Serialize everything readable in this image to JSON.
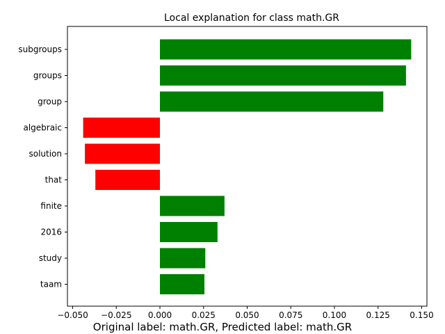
{
  "chart_data": {
    "type": "bar",
    "orientation": "horizontal",
    "title": "Local explanation for class math.GR",
    "caption": "Original label: math.GR, Predicted label: math.GR",
    "xlabel": "",
    "ylabel": "",
    "xlim": [
      -0.053,
      0.153
    ],
    "xticks": [
      -0.05,
      -0.025,
      0.0,
      0.025,
      0.05,
      0.075,
      0.1,
      0.125,
      0.15
    ],
    "xtick_labels": [
      "−0.050",
      "−0.025",
      "0.000",
      "0.025",
      "0.050",
      "0.075",
      "0.100",
      "0.125",
      "0.150"
    ],
    "categories": [
      "subgroups",
      "groups",
      "group",
      "algebraic",
      "solution",
      "that",
      "finite",
      "2016",
      "study",
      "taam"
    ],
    "values": [
      0.144,
      0.141,
      0.128,
      -0.044,
      -0.043,
      -0.037,
      0.037,
      0.033,
      0.026,
      0.0255
    ],
    "colors": {
      "positive": "#008000",
      "negative": "#ff0000"
    },
    "grid": false,
    "legend": "none"
  }
}
